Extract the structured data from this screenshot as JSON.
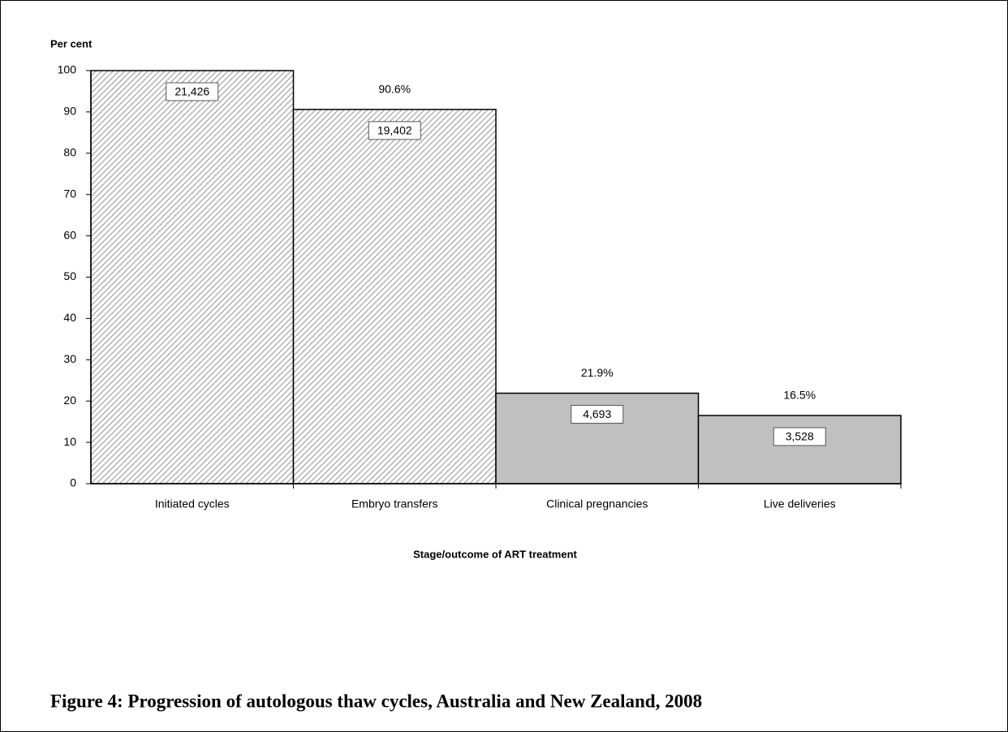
{
  "chart_data": {
    "type": "bar",
    "title": "Figure 4: Progression of autologous thaw cycles, Australia and New Zealand, 2008",
    "y_label": "Per cent",
    "x_label": "Stage/outcome of ART treatment",
    "categories": [
      "Initiated cycles",
      "Embryo transfers",
      "Clinical pregnancies",
      "Live deliveries"
    ],
    "values": [
      100,
      90.6,
      21.9,
      16.5
    ],
    "value_labels": [
      null,
      "90.6%",
      "21.9%",
      "16.5%"
    ],
    "count_labels": [
      "21,426",
      "19,402",
      "4,693",
      "3,528"
    ],
    "colors": [
      "#ffffff",
      "#ffffff",
      "#c0c0c0",
      "#c0c0c0"
    ],
    "hatched": [
      true,
      true,
      false,
      false
    ],
    "ylim": [
      0,
      100
    ],
    "yticks": [
      0,
      10,
      20,
      30,
      40,
      50,
      60,
      70,
      80,
      90,
      100
    ],
    "grid": false
  }
}
